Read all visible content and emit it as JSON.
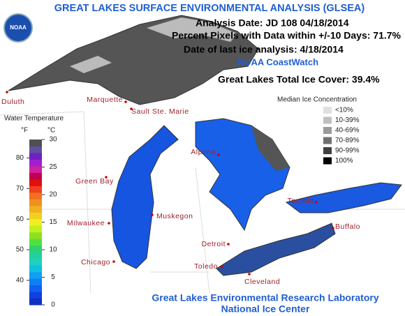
{
  "header": {
    "title": "GREAT LAKES SURFACE ENVIRONMENTAL ANALYSIS (GLSEA)",
    "analysis_date": "Analysis Date:  JD 108 04/18/2014",
    "percent_pixels": "Percent Pixels with Data within +/-10 Days:  71.7%",
    "last_ice": "Date of last ice analysis: 4/18/2014",
    "source": "NOAA CoastWatch",
    "total_ice": "Great Lakes Total Ice Cover:  39.4%"
  },
  "logo": "NOAA",
  "ice_legend": {
    "title": "Median Ice Concentration",
    "items": [
      {
        "label": "<10%",
        "color": "#e0e0e0"
      },
      {
        "label": "10-39%",
        "color": "#c0c0c0"
      },
      {
        "label": "40-69%",
        "color": "#9a9a9a"
      },
      {
        "label": "70-89%",
        "color": "#707070"
      },
      {
        "label": "90-99%",
        "color": "#404040"
      },
      {
        "label": "100%",
        "color": "#000000"
      }
    ]
  },
  "temperature_legend": {
    "title": "Water Temperature",
    "f_unit": "°F",
    "c_unit": "°C",
    "clim": [
      0,
      30
    ],
    "c_ticks": [
      30,
      25,
      20,
      15,
      10,
      5,
      0
    ],
    "f_ticks": [
      80,
      70,
      60,
      50,
      40
    ],
    "colors": [
      "#1030c0",
      "#1040e0",
      "#1060f0",
      "#1080f0",
      "#10a0f0",
      "#10c0e0",
      "#20d0c0",
      "#20d0a0",
      "#30d070",
      "#50e040",
      "#90e020",
      "#c0f020",
      "#f0f020",
      "#f0d020",
      "#f0b020",
      "#f09020",
      "#f07020",
      "#f04020",
      "#e01010",
      "#c00050",
      "#d020a0",
      "#a020d0",
      "#7020c0",
      "#6050a0",
      "#505050"
    ]
  },
  "cities": [
    {
      "name": "Duluth"
    },
    {
      "name": "Marquette"
    },
    {
      "name": "Sault Ste. Marie"
    },
    {
      "name": "Alpena"
    },
    {
      "name": "Green Bay"
    },
    {
      "name": "Muskegon"
    },
    {
      "name": "Milwaukee"
    },
    {
      "name": "Chicago"
    },
    {
      "name": "Detroit"
    },
    {
      "name": "Toledo"
    },
    {
      "name": "Cleveland"
    },
    {
      "name": "Toronto"
    },
    {
      "name": "Buffalo"
    }
  ],
  "footer": {
    "line1": "Great Lakes Environmental Research Laboratory",
    "line2": "National Ice Center"
  }
}
